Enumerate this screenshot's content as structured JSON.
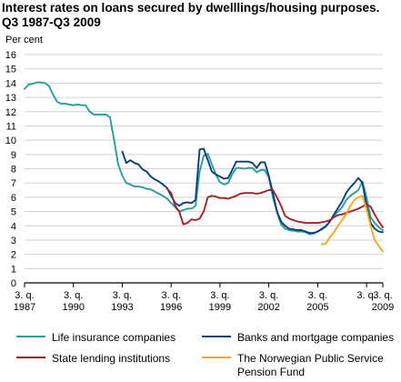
{
  "title_line1": "Interest rates on loans secured by dwelllings/housing purposes.",
  "title_line2": "Q3 1987-Q3 2009",
  "chart_data": {
    "type": "line",
    "ylabel": "Per cent",
    "ylim": [
      0,
      16
    ],
    "yticks": [
      0,
      1,
      2,
      3,
      4,
      5,
      6,
      7,
      8,
      9,
      10,
      11,
      12,
      13,
      14,
      15,
      16
    ],
    "xlim": [
      1987.5,
      2009.5
    ],
    "xticks": [
      {
        "t": 1987.5,
        "top": "3. q.",
        "bottom": "1987"
      },
      {
        "t": 1990.5,
        "top": "3. q.",
        "bottom": "1990"
      },
      {
        "t": 1993.5,
        "top": "3. q.",
        "bottom": "1993"
      },
      {
        "t": 1996.5,
        "top": "3. q.",
        "bottom": "1996"
      },
      {
        "t": 1999.5,
        "top": "3. q.",
        "bottom": "1999"
      },
      {
        "t": 2002.5,
        "top": "3. q.",
        "bottom": "2002"
      },
      {
        "t": 2005.5,
        "top": "3. q.",
        "bottom": "2005"
      },
      {
        "t": 2008.5,
        "top": "3. q.",
        "bottom": ""
      },
      {
        "t": 2009.5,
        "top": "3. q.",
        "bottom": "2009"
      }
    ],
    "grid": true,
    "legend_position": "bottom",
    "series": [
      {
        "name": "Life insurance companies",
        "color": "#2a9d9a",
        "points": [
          [
            1987.5,
            13.6
          ],
          [
            1987.75,
            13.9
          ],
          [
            1988.0,
            13.95
          ],
          [
            1988.25,
            14.05
          ],
          [
            1988.5,
            14.05
          ],
          [
            1988.75,
            14.0
          ],
          [
            1989.0,
            13.8
          ],
          [
            1989.25,
            13.2
          ],
          [
            1989.5,
            12.7
          ],
          [
            1989.75,
            12.55
          ],
          [
            1990.0,
            12.55
          ],
          [
            1990.25,
            12.5
          ],
          [
            1990.5,
            12.45
          ],
          [
            1990.75,
            12.5
          ],
          [
            1991.0,
            12.45
          ],
          [
            1991.25,
            12.45
          ],
          [
            1991.5,
            12.0
          ],
          [
            1991.75,
            11.8
          ],
          [
            1992.0,
            11.8
          ],
          [
            1992.25,
            11.8
          ],
          [
            1992.5,
            11.8
          ],
          [
            1992.75,
            11.6
          ],
          [
            1993.0,
            10.0
          ],
          [
            1993.25,
            8.3
          ],
          [
            1993.5,
            7.5
          ],
          [
            1993.75,
            7.0
          ],
          [
            1994.0,
            6.9
          ],
          [
            1994.25,
            6.75
          ],
          [
            1994.5,
            6.75
          ],
          [
            1994.75,
            6.7
          ],
          [
            1995.0,
            6.6
          ],
          [
            1995.25,
            6.55
          ],
          [
            1995.5,
            6.4
          ],
          [
            1995.75,
            6.25
          ],
          [
            1996.0,
            6.1
          ],
          [
            1996.25,
            5.9
          ],
          [
            1996.5,
            5.6
          ],
          [
            1996.75,
            5.3
          ],
          [
            1997.0,
            5.0
          ],
          [
            1997.25,
            5.1
          ],
          [
            1997.5,
            5.2
          ],
          [
            1997.75,
            5.2
          ],
          [
            1998.0,
            5.4
          ],
          [
            1998.25,
            7.8
          ],
          [
            1998.5,
            8.9
          ],
          [
            1998.75,
            9.05
          ],
          [
            1999.0,
            8.3
          ],
          [
            1999.25,
            7.6
          ],
          [
            1999.5,
            7.05
          ],
          [
            1999.75,
            6.9
          ],
          [
            2000.0,
            7.0
          ],
          [
            2000.25,
            7.6
          ],
          [
            2000.5,
            8.05
          ],
          [
            2000.75,
            8.05
          ],
          [
            2001.0,
            8.0
          ],
          [
            2001.25,
            8.05
          ],
          [
            2001.5,
            8.05
          ],
          [
            2001.75,
            7.75
          ],
          [
            2002.0,
            7.9
          ],
          [
            2002.25,
            7.9
          ],
          [
            2002.5,
            7.4
          ],
          [
            2002.75,
            6.0
          ],
          [
            2003.0,
            4.95
          ],
          [
            2003.25,
            4.1
          ],
          [
            2003.5,
            3.8
          ],
          [
            2003.75,
            3.7
          ],
          [
            2004.0,
            3.65
          ],
          [
            2004.25,
            3.6
          ],
          [
            2004.5,
            3.6
          ],
          [
            2004.75,
            3.55
          ],
          [
            2005.0,
            3.4
          ],
          [
            2005.25,
            3.45
          ],
          [
            2005.5,
            3.6
          ],
          [
            2005.75,
            3.8
          ],
          [
            2006.0,
            4.0
          ],
          [
            2006.25,
            4.3
          ],
          [
            2006.5,
            4.7
          ],
          [
            2006.75,
            5.0
          ],
          [
            2007.0,
            5.3
          ],
          [
            2007.25,
            5.8
          ],
          [
            2007.5,
            6.1
          ],
          [
            2007.75,
            6.3
          ],
          [
            2008.0,
            6.5
          ],
          [
            2008.25,
            7.1
          ],
          [
            2008.5,
            6.0
          ],
          [
            2008.75,
            4.6
          ],
          [
            2009.0,
            4.2
          ],
          [
            2009.25,
            3.9
          ],
          [
            2009.5,
            3.7
          ]
        ]
      },
      {
        "name": "Banks and mortgage companies",
        "color": "#0d3c7a",
        "points": [
          [
            1993.5,
            9.2
          ],
          [
            1993.75,
            8.4
          ],
          [
            1994.0,
            8.6
          ],
          [
            1994.25,
            8.4
          ],
          [
            1994.5,
            8.3
          ],
          [
            1994.75,
            7.95
          ],
          [
            1995.0,
            7.8
          ],
          [
            1995.25,
            7.45
          ],
          [
            1995.5,
            7.25
          ],
          [
            1995.75,
            7.1
          ],
          [
            1996.0,
            6.9
          ],
          [
            1996.25,
            6.65
          ],
          [
            1996.5,
            6.1
          ],
          [
            1996.75,
            5.6
          ],
          [
            1997.0,
            5.4
          ],
          [
            1997.25,
            5.6
          ],
          [
            1997.5,
            5.65
          ],
          [
            1997.75,
            5.6
          ],
          [
            1998.0,
            5.8
          ],
          [
            1998.25,
            9.35
          ],
          [
            1998.5,
            9.4
          ],
          [
            1998.75,
            8.6
          ],
          [
            1999.0,
            7.8
          ],
          [
            1999.25,
            7.6
          ],
          [
            1999.5,
            7.45
          ],
          [
            1999.75,
            7.3
          ],
          [
            2000.0,
            7.35
          ],
          [
            2000.25,
            7.9
          ],
          [
            2000.5,
            8.5
          ],
          [
            2000.75,
            8.5
          ],
          [
            2001.0,
            8.5
          ],
          [
            2001.25,
            8.5
          ],
          [
            2001.5,
            8.4
          ],
          [
            2001.75,
            8.05
          ],
          [
            2002.0,
            8.45
          ],
          [
            2002.25,
            8.45
          ],
          [
            2002.5,
            7.5
          ],
          [
            2002.75,
            6.3
          ],
          [
            2003.0,
            5.0
          ],
          [
            2003.25,
            4.3
          ],
          [
            2003.5,
            4.0
          ],
          [
            2003.75,
            3.8
          ],
          [
            2004.0,
            3.75
          ],
          [
            2004.25,
            3.7
          ],
          [
            2004.5,
            3.7
          ],
          [
            2004.75,
            3.6
          ],
          [
            2005.0,
            3.5
          ],
          [
            2005.25,
            3.5
          ],
          [
            2005.5,
            3.6
          ],
          [
            2005.75,
            3.75
          ],
          [
            2006.0,
            3.95
          ],
          [
            2006.25,
            4.3
          ],
          [
            2006.5,
            4.8
          ],
          [
            2006.75,
            5.25
          ],
          [
            2007.0,
            5.7
          ],
          [
            2007.25,
            6.3
          ],
          [
            2007.5,
            6.7
          ],
          [
            2007.75,
            7.0
          ],
          [
            2008.0,
            7.35
          ],
          [
            2008.25,
            7.0
          ],
          [
            2008.5,
            5.4
          ],
          [
            2008.75,
            4.2
          ],
          [
            2009.0,
            3.8
          ],
          [
            2009.25,
            3.6
          ],
          [
            2009.5,
            3.55
          ]
        ]
      },
      {
        "name": "State lending institutions",
        "color": "#a3212a",
        "points": [
          [
            1996.25,
            6.6
          ],
          [
            1996.5,
            6.3
          ],
          [
            1996.75,
            5.4
          ],
          [
            1997.0,
            5.0
          ],
          [
            1997.25,
            4.1
          ],
          [
            1997.5,
            4.2
          ],
          [
            1997.75,
            4.45
          ],
          [
            1998.0,
            4.4
          ],
          [
            1998.25,
            4.5
          ],
          [
            1998.5,
            5.0
          ],
          [
            1998.75,
            6.0
          ],
          [
            1999.0,
            6.1
          ],
          [
            1999.25,
            6.05
          ],
          [
            1999.5,
            5.95
          ],
          [
            1999.75,
            5.95
          ],
          [
            2000.0,
            5.9
          ],
          [
            2000.25,
            6.0
          ],
          [
            2000.5,
            6.1
          ],
          [
            2000.75,
            6.25
          ],
          [
            2001.0,
            6.3
          ],
          [
            2001.25,
            6.3
          ],
          [
            2001.5,
            6.3
          ],
          [
            2001.75,
            6.25
          ],
          [
            2002.0,
            6.3
          ],
          [
            2002.25,
            6.4
          ],
          [
            2002.5,
            6.5
          ],
          [
            2002.75,
            6.5
          ],
          [
            2003.0,
            6.0
          ],
          [
            2003.25,
            5.4
          ],
          [
            2003.5,
            4.7
          ],
          [
            2003.75,
            4.5
          ],
          [
            2004.0,
            4.4
          ],
          [
            2004.25,
            4.3
          ],
          [
            2004.5,
            4.25
          ],
          [
            2004.75,
            4.2
          ],
          [
            2005.0,
            4.2
          ],
          [
            2005.25,
            4.2
          ],
          [
            2005.5,
            4.2
          ],
          [
            2005.75,
            4.25
          ],
          [
            2006.0,
            4.3
          ],
          [
            2006.25,
            4.4
          ],
          [
            2006.5,
            4.6
          ],
          [
            2006.75,
            4.75
          ],
          [
            2007.0,
            4.8
          ],
          [
            2007.25,
            4.9
          ],
          [
            2007.5,
            5.0
          ],
          [
            2007.75,
            5.1
          ],
          [
            2008.0,
            5.2
          ],
          [
            2008.25,
            5.35
          ],
          [
            2008.5,
            5.5
          ],
          [
            2008.75,
            5.35
          ],
          [
            2009.0,
            4.8
          ],
          [
            2009.25,
            4.3
          ],
          [
            2009.5,
            3.9
          ]
        ]
      },
      {
        "name": "The Norwegian Public Service Pension Fund",
        "legend_line1": "The Norwegian Public Service",
        "legend_line2": "Pension Fund",
        "color": "#f5a623",
        "points": [
          [
            2005.75,
            2.7
          ],
          [
            2006.0,
            2.75
          ],
          [
            2006.25,
            3.2
          ],
          [
            2006.5,
            3.55
          ],
          [
            2006.75,
            4.0
          ],
          [
            2007.0,
            4.4
          ],
          [
            2007.25,
            4.8
          ],
          [
            2007.5,
            5.4
          ],
          [
            2007.75,
            5.8
          ],
          [
            2008.0,
            6.0
          ],
          [
            2008.25,
            6.1
          ],
          [
            2008.5,
            5.2
          ],
          [
            2008.75,
            4.0
          ],
          [
            2009.0,
            3.0
          ],
          [
            2009.25,
            2.6
          ],
          [
            2009.5,
            2.2
          ]
        ]
      }
    ]
  }
}
